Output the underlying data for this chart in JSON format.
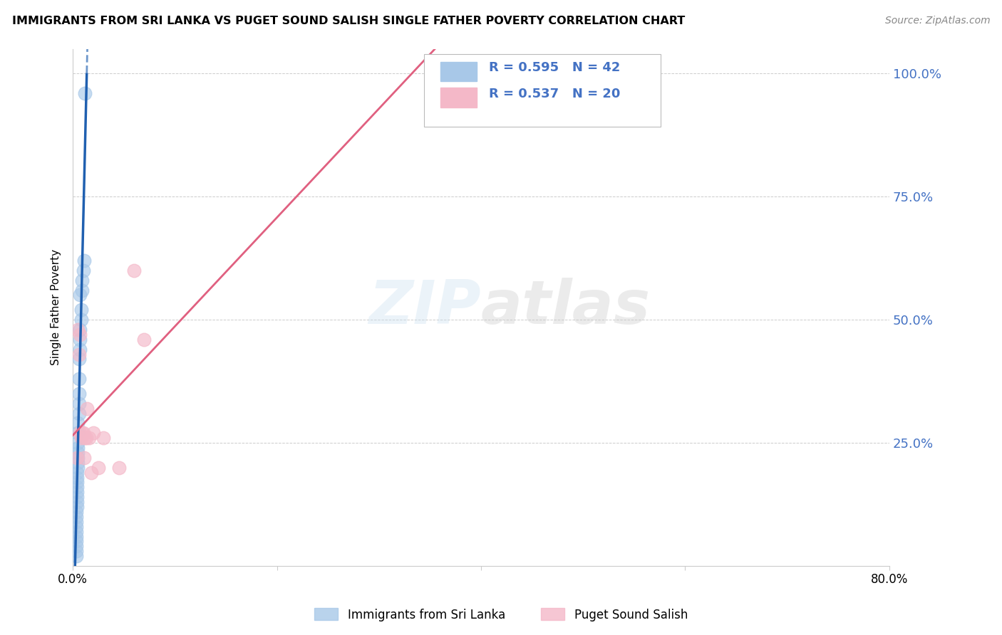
{
  "title": "IMMIGRANTS FROM SRI LANKA VS PUGET SOUND SALISH SINGLE FATHER POVERTY CORRELATION CHART",
  "source": "Source: ZipAtlas.com",
  "ylabel": "Single Father Poverty",
  "legend1_r": "0.595",
  "legend1_n": "42",
  "legend2_r": "0.537",
  "legend2_n": "20",
  "blue_scatter_color": "#a8c8e8",
  "pink_scatter_color": "#f4b8c8",
  "blue_line_color": "#2060b0",
  "pink_line_color": "#e06080",
  "watermark": "ZIPatlas",
  "blue_points_x": [
    0.003,
    0.003,
    0.003,
    0.003,
    0.003,
    0.003,
    0.003,
    0.003,
    0.003,
    0.003,
    0.004,
    0.004,
    0.004,
    0.004,
    0.004,
    0.004,
    0.004,
    0.004,
    0.005,
    0.005,
    0.005,
    0.005,
    0.005,
    0.005,
    0.005,
    0.005,
    0.006,
    0.006,
    0.006,
    0.006,
    0.006,
    0.007,
    0.007,
    0.007,
    0.007,
    0.008,
    0.008,
    0.009,
    0.009,
    0.01,
    0.011,
    0.012
  ],
  "blue_points_y": [
    0.02,
    0.03,
    0.04,
    0.05,
    0.06,
    0.07,
    0.08,
    0.09,
    0.1,
    0.11,
    0.12,
    0.13,
    0.14,
    0.15,
    0.16,
    0.17,
    0.18,
    0.19,
    0.2,
    0.21,
    0.22,
    0.23,
    0.24,
    0.25,
    0.27,
    0.29,
    0.31,
    0.33,
    0.35,
    0.38,
    0.42,
    0.44,
    0.46,
    0.48,
    0.55,
    0.5,
    0.52,
    0.56,
    0.58,
    0.6,
    0.62,
    0.96
  ],
  "pink_points_x": [
    0.004,
    0.005,
    0.006,
    0.007,
    0.007,
    0.008,
    0.009,
    0.01,
    0.011,
    0.012,
    0.013,
    0.014,
    0.016,
    0.018,
    0.02,
    0.025,
    0.03,
    0.045,
    0.06,
    0.07
  ],
  "pink_points_y": [
    0.22,
    0.48,
    0.43,
    0.27,
    0.47,
    0.26,
    0.27,
    0.27,
    0.22,
    0.26,
    0.26,
    0.32,
    0.26,
    0.19,
    0.27,
    0.2,
    0.26,
    0.2,
    0.6,
    0.46
  ],
  "xmin": 0.0,
  "xmax": 0.8,
  "ymin": 0.0,
  "ymax": 1.05,
  "ytick_vals": [
    0.0,
    0.25,
    0.5,
    0.75,
    1.0
  ],
  "ytick_labels": [
    "",
    "25.0%",
    "50.0%",
    "75.0%",
    "100.0%"
  ],
  "xtick_vals": [
    0.0,
    0.2,
    0.4,
    0.6,
    0.8
  ],
  "xtick_labels": [
    "0.0%",
    "",
    "",
    "",
    "80.0%"
  ]
}
